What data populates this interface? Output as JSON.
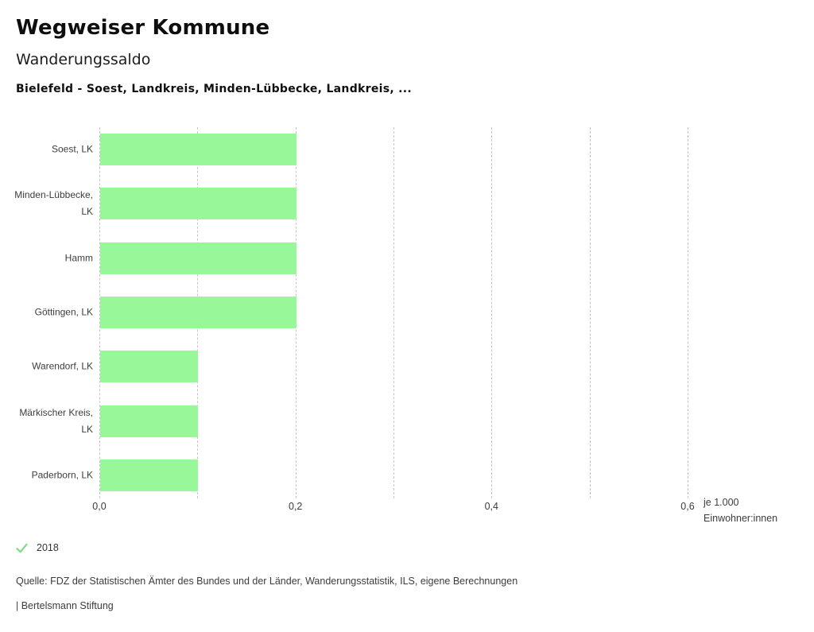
{
  "header": {
    "app_title": "Wegweiser Kommune",
    "chart_title": "Wanderungssaldo",
    "subtitle": "Bielefeld - Soest, Landkreis, Minden-Lübbecke, Landkreis, ..."
  },
  "chart_data": {
    "type": "bar",
    "orientation": "horizontal",
    "title": "Wanderungssaldo",
    "subtitle": "Bielefeld - Soest, Landkreis, Minden-Lübbecke, Landkreis, ...",
    "categories": [
      "Soest, LK",
      "Minden-Lübbecke, LK",
      "Hamm",
      "Göttingen, LK",
      "Warendorf, LK",
      "Märkischer Kreis, LK",
      "Paderborn, LK"
    ],
    "series": [
      {
        "name": "2018",
        "values": [
          0.2,
          0.2,
          0.2,
          0.2,
          0.1,
          0.1,
          0.1
        ]
      }
    ],
    "xlim": [
      0,
      0.6
    ],
    "x_gridline_step": 0.1,
    "x_ticks": [
      {
        "value": 0.0,
        "label": "0,0"
      },
      {
        "value": 0.2,
        "label": "0,2"
      },
      {
        "value": 0.4,
        "label": "0,4"
      },
      {
        "value": 0.6,
        "label": "0,6"
      }
    ],
    "x_unit": "je 1.000 Einwohner:innen",
    "x_unit_lines": [
      "je 1.000",
      "Einwohner:innen"
    ],
    "grid": true,
    "grid_style": "dashed-vertical",
    "legend_position": "bottom-left",
    "bar_color": "#98f798",
    "legend_marker": "check-icon",
    "legend_marker_color": "#82da82"
  },
  "legend": {
    "year": "2018"
  },
  "footer": {
    "source": "Quelle: FDZ der Statistischen Ämter des Bundes und der Länder, Wanderungsstatistik, ILS, eigene Berechnungen",
    "attribution": "| Bertelsmann Stiftung"
  }
}
